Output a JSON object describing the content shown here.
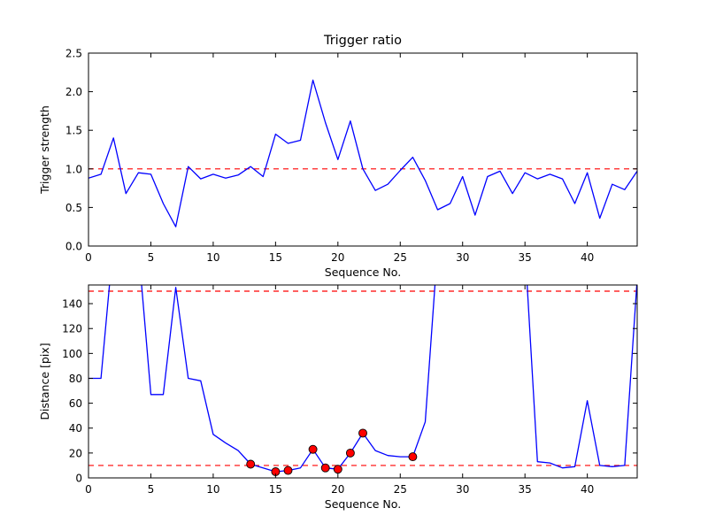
{
  "figure": {
    "title": "Trigger ratio",
    "background": "#ffffff",
    "frame_color": "#000000"
  },
  "style": {
    "line_color": "#0000ff",
    "threshold_color": "#ff0000",
    "marker_fill": "#ff0000",
    "marker_edge": "#000000"
  },
  "chart_data": [
    {
      "type": "line",
      "title": "Trigger ratio",
      "xlabel": "Sequence No.",
      "ylabel": "Trigger strength",
      "xlim": [
        0,
        44
      ],
      "ylim": [
        0.0,
        2.5
      ],
      "xticks": [
        0,
        5,
        10,
        15,
        20,
        25,
        30,
        35,
        40
      ],
      "yticks": [
        0.0,
        0.5,
        1.0,
        1.5,
        2.0,
        2.5
      ],
      "ytick_decimals": 1,
      "grid": false,
      "legend": "none",
      "hlines": [
        1.0
      ],
      "series": [
        {
          "name": "trigger-strength",
          "color": "#0000ff",
          "x": [
            0,
            1,
            2,
            3,
            4,
            5,
            6,
            7,
            8,
            9,
            10,
            11,
            12,
            13,
            14,
            15,
            16,
            17,
            18,
            19,
            20,
            21,
            22,
            23,
            24,
            25,
            26,
            27,
            28,
            29,
            30,
            31,
            32,
            33,
            34,
            35,
            36,
            37,
            38,
            39,
            40,
            41,
            42,
            43,
            44
          ],
          "y": [
            0.88,
            0.93,
            1.4,
            0.68,
            0.95,
            0.93,
            0.55,
            0.25,
            1.03,
            0.87,
            0.93,
            0.88,
            0.92,
            1.03,
            0.9,
            1.45,
            1.33,
            1.37,
            2.15,
            1.6,
            1.12,
            1.62,
            1.0,
            0.72,
            0.8,
            0.98,
            1.15,
            0.85,
            0.47,
            0.55,
            0.9,
            0.4,
            0.9,
            0.97,
            0.68,
            0.95,
            0.87,
            0.93,
            0.87,
            0.55,
            0.95,
            0.36,
            0.8,
            0.73,
            0.97
          ]
        }
      ]
    },
    {
      "type": "line",
      "title": "",
      "xlabel": "Sequence No.",
      "ylabel": "Distance [pix]",
      "xlim": [
        0,
        44
      ],
      "ylim": [
        0,
        155
      ],
      "xticks": [
        0,
        5,
        10,
        15,
        20,
        25,
        30,
        35,
        40
      ],
      "yticks": [
        0,
        20,
        40,
        60,
        80,
        100,
        120,
        140
      ],
      "ytick_decimals": 0,
      "grid": false,
      "legend": "none",
      "hlines": [
        150,
        10
      ],
      "series": [
        {
          "name": "distance",
          "color": "#0000ff",
          "x": [
            0,
            1,
            2,
            3,
            4,
            5,
            6,
            7,
            8,
            9,
            10,
            11,
            12,
            13,
            14,
            15,
            16,
            17,
            18,
            19,
            20,
            21,
            22,
            23,
            24,
            25,
            26,
            27,
            28,
            29,
            30,
            31,
            32,
            33,
            34,
            35,
            36,
            37,
            38,
            39,
            40,
            41,
            42,
            43,
            44
          ],
          "y": [
            80,
            80,
            190,
            180,
            185,
            67,
            67,
            153,
            80,
            78,
            35,
            28,
            22,
            11,
            8,
            5,
            6,
            8,
            23,
            8,
            7,
            20,
            36,
            22,
            18,
            17,
            17,
            45,
            185,
            185,
            185,
            185,
            185,
            185,
            185,
            185,
            13,
            12,
            8,
            9,
            62,
            10,
            9,
            10,
            160
          ]
        }
      ],
      "markers": {
        "color": "#ff0000",
        "edge": "#000000",
        "points": [
          [
            13,
            11
          ],
          [
            15,
            5
          ],
          [
            16,
            6
          ],
          [
            18,
            23
          ],
          [
            19,
            8
          ],
          [
            20,
            7
          ],
          [
            21,
            20
          ],
          [
            22,
            36
          ],
          [
            26,
            17
          ]
        ]
      }
    }
  ]
}
